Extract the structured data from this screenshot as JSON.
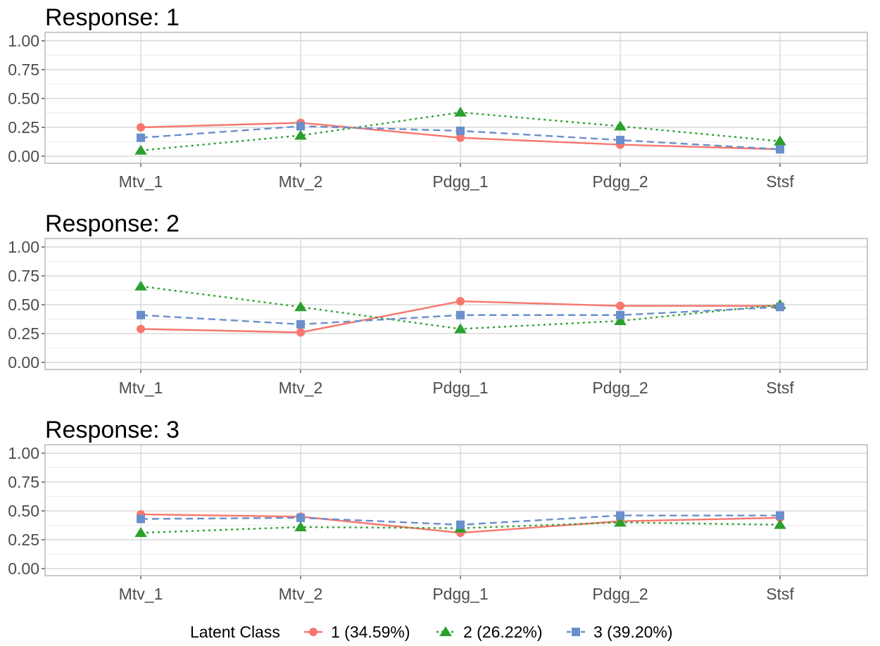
{
  "chart_data": {
    "type": "line",
    "categories": [
      "Mtv_1",
      "Mtv_2",
      "Pdgg_1",
      "Pdgg_2",
      "Stsf"
    ],
    "ylim": [
      0,
      1
    ],
    "y_ticks": [
      "0.00",
      "0.25",
      "0.50",
      "0.75",
      "1.00"
    ],
    "grid": true,
    "legend": {
      "title": "Latent Class",
      "position": "bottom",
      "entries": [
        {
          "label": "1 (34.59%)",
          "color": "#F8766D",
          "marker": "circle",
          "dash": "solid"
        },
        {
          "label": "2 (26.22%)",
          "color": "#2CA02C",
          "marker": "triangle",
          "dash": "dotted"
        },
        {
          "label": "3 (39.20%)",
          "color": "#6A8FCB",
          "marker": "square",
          "dash": "dashed"
        }
      ]
    },
    "panels": [
      {
        "title": "Response: 1",
        "series": [
          {
            "name": "1 (34.59%)",
            "values": [
              0.25,
              0.29,
              0.16,
              0.1,
              0.06
            ]
          },
          {
            "name": "2 (26.22%)",
            "values": [
              0.05,
              0.18,
              0.38,
              0.26,
              0.13
            ]
          },
          {
            "name": "3 (39.20%)",
            "values": [
              0.16,
              0.26,
              0.22,
              0.14,
              0.06
            ]
          }
        ]
      },
      {
        "title": "Response: 2",
        "series": [
          {
            "name": "1 (34.59%)",
            "values": [
              0.29,
              0.26,
              0.53,
              0.49,
              0.49
            ]
          },
          {
            "name": "2 (26.22%)",
            "values": [
              0.66,
              0.48,
              0.29,
              0.36,
              0.5
            ]
          },
          {
            "name": "3 (39.20%)",
            "values": [
              0.41,
              0.33,
              0.41,
              0.41,
              0.48
            ]
          }
        ]
      },
      {
        "title": "Response: 3",
        "series": [
          {
            "name": "1 (34.59%)",
            "values": [
              0.47,
              0.45,
              0.31,
              0.41,
              0.44
            ]
          },
          {
            "name": "2 (26.22%)",
            "values": [
              0.31,
              0.36,
              0.35,
              0.4,
              0.38
            ]
          },
          {
            "name": "3 (39.20%)",
            "values": [
              0.43,
              0.44,
              0.38,
              0.46,
              0.46
            ]
          }
        ]
      }
    ]
  }
}
